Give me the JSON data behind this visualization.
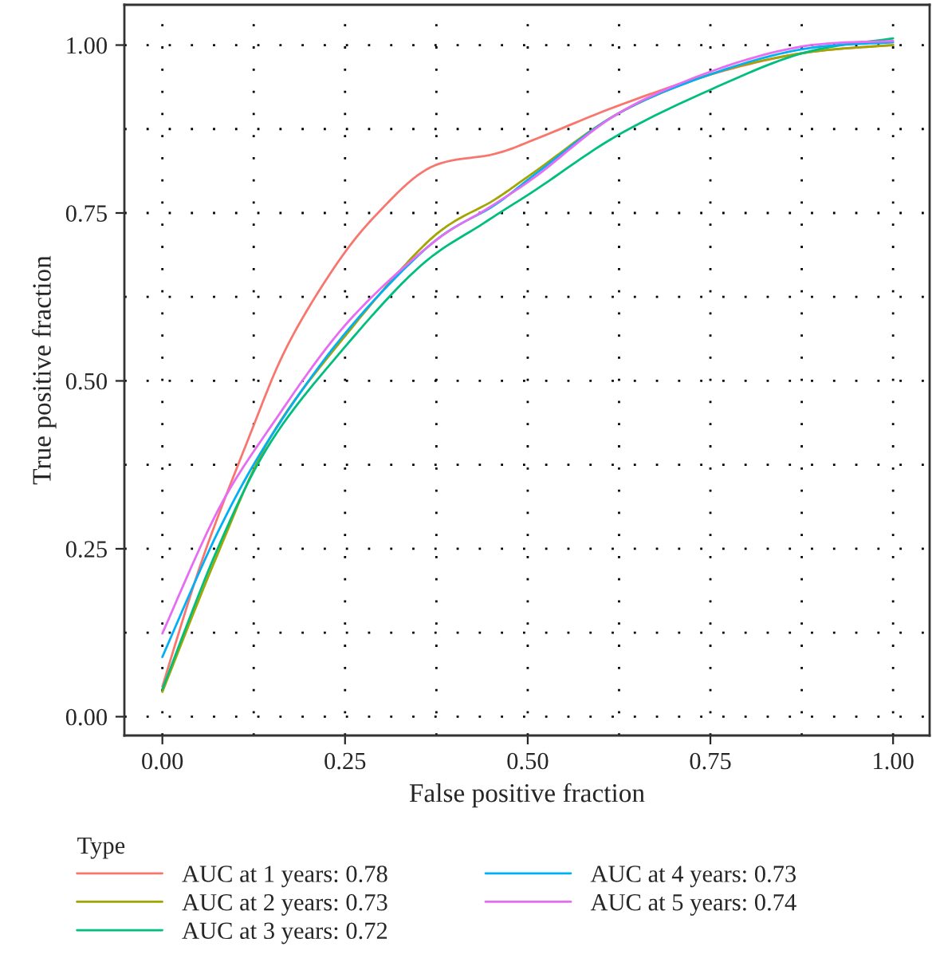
{
  "chart_data": {
    "type": "line",
    "xlabel": "False positive fraction",
    "ylabel": "True positive fraction",
    "legend_title": "Type",
    "legend": "bottom",
    "grid": true,
    "xlim": [
      -0.052,
      1.05
    ],
    "ylim": [
      -0.028,
      1.06
    ],
    "xticks": [
      {
        "value": 0,
        "label": "0.00"
      },
      {
        "value": 0.25,
        "label": "0.25"
      },
      {
        "value": 0.5,
        "label": "0.50"
      },
      {
        "value": 0.75,
        "label": "0.75"
      },
      {
        "value": 1,
        "label": "1.00"
      }
    ],
    "yticks": [
      {
        "value": 0,
        "label": "0.00"
      },
      {
        "value": 0.25,
        "label": "0.25"
      },
      {
        "value": 0.5,
        "label": "0.50"
      },
      {
        "value": 0.75,
        "label": "0.75"
      },
      {
        "value": 1,
        "label": "1.00"
      }
    ],
    "series": [
      {
        "name": "AUC at 1 years: 0.78",
        "color": "#f8766d",
        "x": [
          0,
          0.055,
          0.12,
          0.17,
          0.236,
          0.295,
          0.367,
          0.455,
          0.513,
          0.622,
          0.749,
          0.876,
          1
        ],
        "values": [
          0.045,
          0.235,
          0.42,
          0.55,
          0.67,
          0.75,
          0.818,
          0.838,
          0.861,
          0.909,
          0.956,
          0.988,
          1.0
        ]
      },
      {
        "name": "AUC at 2 years: 0.73",
        "color": "#a3a500",
        "x": [
          0,
          0.076,
          0.149,
          0.251,
          0.367,
          0.455,
          0.513,
          0.622,
          0.749,
          0.876,
          1
        ],
        "values": [
          0.037,
          0.243,
          0.418,
          0.568,
          0.711,
          0.77,
          0.814,
          0.897,
          0.956,
          0.988,
          1.0
        ]
      },
      {
        "name": "AUC at 3 years: 0.72",
        "color": "#00bf7d",
        "x": [
          0,
          0.076,
          0.149,
          0.251,
          0.353,
          0.44,
          0.513,
          0.622,
          0.749,
          0.876,
          1
        ],
        "values": [
          0.041,
          0.251,
          0.41,
          0.552,
          0.671,
          0.735,
          0.786,
          0.865,
          0.933,
          0.988,
          1.01
        ]
      },
      {
        "name": "AUC at 4 years: 0.73",
        "color": "#00b0f6",
        "x": [
          0,
          0.076,
          0.149,
          0.251,
          0.367,
          0.455,
          0.513,
          0.622,
          0.749,
          0.876,
          1
        ],
        "values": [
          0.089,
          0.275,
          0.418,
          0.572,
          0.703,
          0.762,
          0.81,
          0.897,
          0.956,
          0.994,
          1.004
        ]
      },
      {
        "name": "AUC at 5 years: 0.74",
        "color": "#e76bf3",
        "x": [
          0,
          0.076,
          0.149,
          0.251,
          0.367,
          0.447,
          0.513,
          0.622,
          0.749,
          0.876,
          1
        ],
        "values": [
          0.124,
          0.307,
          0.433,
          0.584,
          0.703,
          0.758,
          0.806,
          0.897,
          0.96,
          0.998,
          1.006
        ]
      }
    ]
  }
}
